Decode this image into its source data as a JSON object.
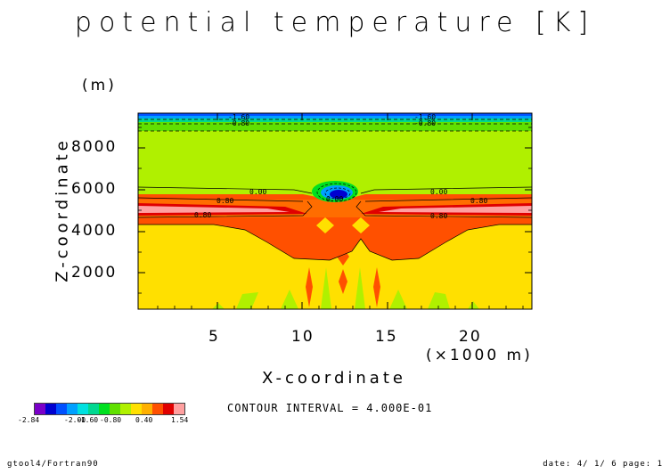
{
  "chart_data": {
    "type": "contour",
    "title": "potential temperature [K]",
    "xlabel": "X-coordinate",
    "ylabel": "Z-coordinate",
    "x_unit": "(×1000 m)",
    "y_unit": "(m)",
    "xlim": [
      0.5,
      23.5
    ],
    "ylim": [
      200,
      9800
    ],
    "x_ticks": [
      "5",
      "10",
      "15",
      "20"
    ],
    "y_ticks": [
      "2000",
      "4000",
      "6000",
      "8000"
    ],
    "contour_interval_text": "CONTOUR INTERVAL = 4.000E-01",
    "contour_labels": [
      "-0.80",
      "-0.80",
      "-1.60",
      "-1.60",
      "0.00",
      "0.00",
      "0.80",
      "0.80",
      "0.80",
      "0.80",
      "0.00"
    ],
    "legend": {
      "colors": [
        "#7a00c8",
        "#0000d0",
        "#0050ff",
        "#00a0ff",
        "#00e0e0",
        "#00d890",
        "#00e020",
        "#60e000",
        "#b0f000",
        "#ffe000",
        "#ffb000",
        "#ff5000",
        "#e00000",
        "#ffa0a0"
      ],
      "labels": [
        "-2.84",
        "-2.00",
        "-1.60",
        "-0.80",
        "0.40",
        "1.54"
      ]
    }
  },
  "footer": {
    "left": "gtool4/Fortran90",
    "right": "date: 4/ 1/ 6 page: 1"
  }
}
